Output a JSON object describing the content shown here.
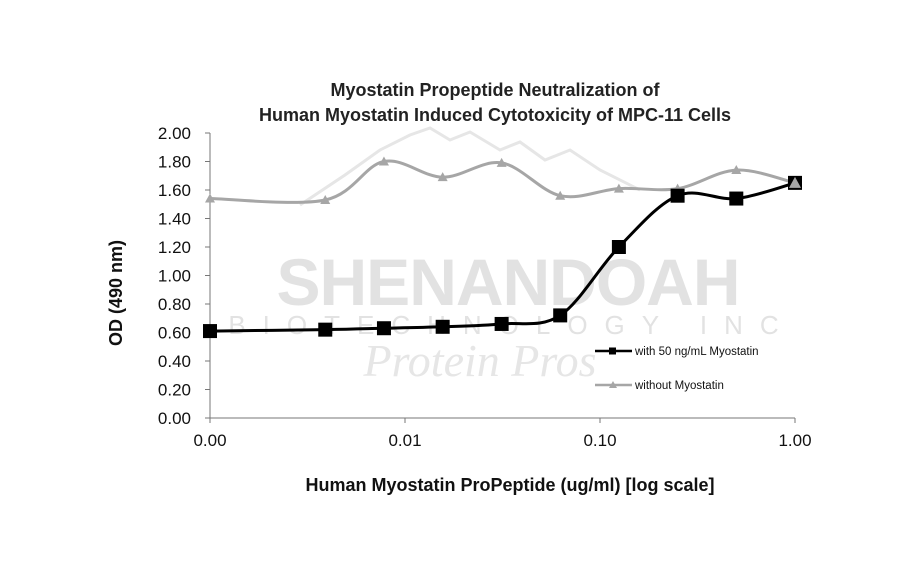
{
  "chart_data": {
    "type": "line",
    "title_lines": [
      "Myostatin Propeptide Neutralization of",
      "Human Myostatin Induced Cytotoxicity of MPC-11 Cells"
    ],
    "xlabel": "Human Myostatin ProPeptide (ug/ml) [log scale]",
    "ylabel": "OD (490 nm)",
    "x_scale": "log",
    "x_tick_values": [
      0.001,
      0.01,
      0.1,
      1
    ],
    "x_tick_labels": [
      "0.00",
      "0.01",
      "0.10",
      "1.00"
    ],
    "y_ticks": [
      "0.00",
      "0.20",
      "0.40",
      "0.60",
      "0.80",
      "1.00",
      "1.20",
      "1.40",
      "1.60",
      "1.80",
      "2.00"
    ],
    "ylim": [
      0,
      2
    ],
    "grid": false,
    "legend_position": "bottom-right",
    "series": [
      {
        "name": "with 50 ng/mL Myostatin",
        "marker": "square",
        "color": "#000000",
        "x": [
          0.001,
          0.0039,
          0.0078,
          0.0156,
          0.0313,
          0.0625,
          0.125,
          0.25,
          0.5,
          1
        ],
        "y": [
          0.61,
          0.62,
          0.63,
          0.64,
          0.66,
          0.72,
          1.2,
          1.56,
          1.54,
          1.65
        ]
      },
      {
        "name": "without Myostatin",
        "marker": "triangle",
        "color": "#a6a6a6",
        "x": [
          0.001,
          0.0039,
          0.0078,
          0.0156,
          0.0313,
          0.0625,
          0.125,
          0.25,
          0.5,
          1
        ],
        "y": [
          1.54,
          1.53,
          1.8,
          1.69,
          1.79,
          1.56,
          1.61,
          1.61,
          1.74,
          1.65
        ]
      }
    ]
  },
  "watermark": {
    "brand": "SHENANDOAH",
    "sub": "BIOTECHNOLOGY INC",
    "script": "Protein Pros"
  }
}
